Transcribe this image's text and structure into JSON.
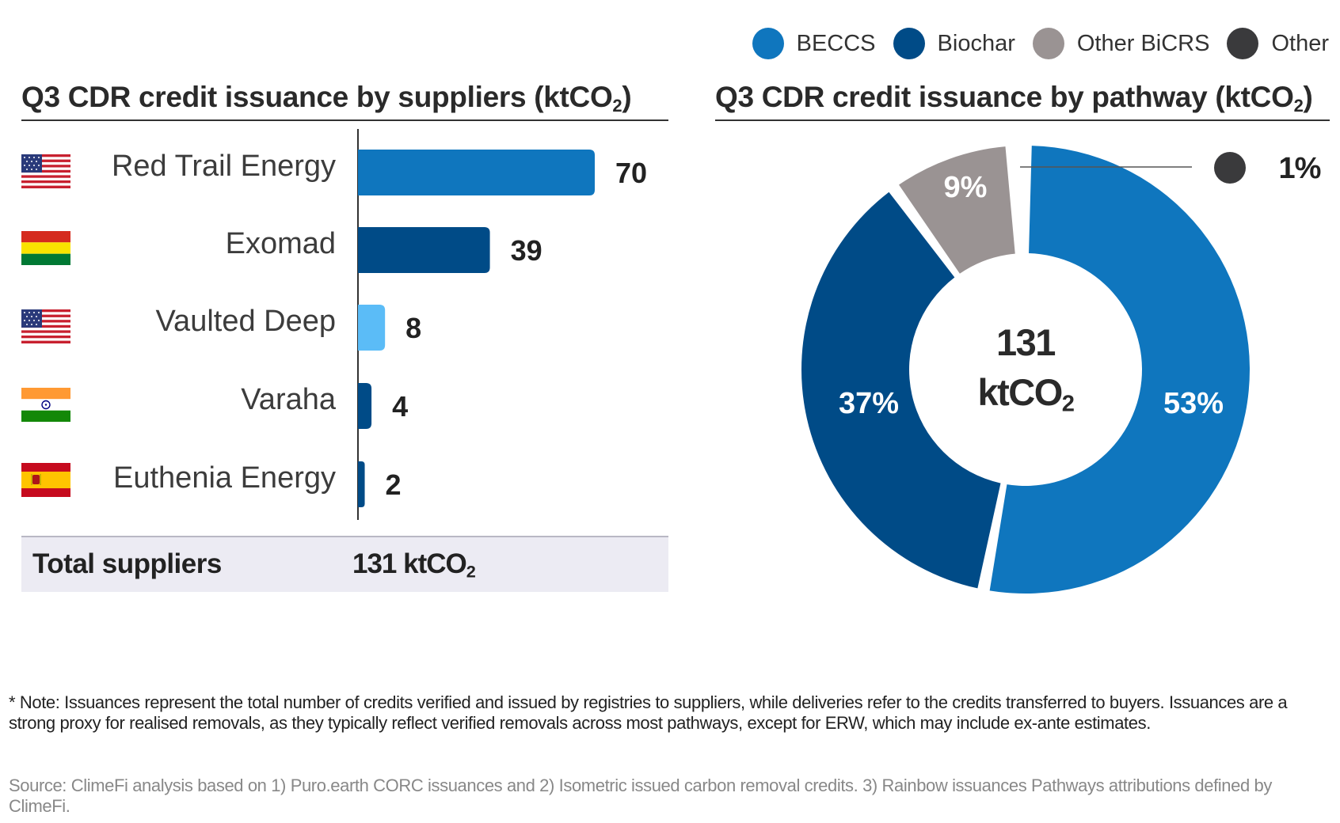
{
  "legend": [
    {
      "label": "BECCS",
      "color": "#0f76be"
    },
    {
      "label": "Biochar",
      "color": "#004b87"
    },
    {
      "label": "Other BiCRS",
      "color": "#9a9393"
    },
    {
      "label": "Other",
      "color": "#3a3a3c"
    }
  ],
  "chart_data": [
    {
      "type": "bar",
      "orientation": "horizontal",
      "title": "Q3 CDR credit issuance by suppliers (ktCO",
      "title_subscript": "2",
      "title_close": ")",
      "categories": [
        "Red Trail Energy",
        "Exomad",
        "Vaulted Deep",
        "Varaha",
        "Euthenia Energy"
      ],
      "values": [
        70,
        39,
        8,
        4,
        2
      ],
      "value_labels": [
        "70",
        "39",
        "8",
        "4",
        "2"
      ],
      "bar_colors": [
        "#0f76be",
        "#004b87",
        "#5bbcf7",
        "#004b87",
        "#004b87"
      ],
      "flags": [
        "us-flag",
        "bolivia-flag",
        "us-flag",
        "india-flag",
        "spain-flag"
      ],
      "xlim": [
        0,
        100
      ]
    },
    {
      "type": "pie",
      "variant": "donut",
      "title": "Q3 CDR credit issuance by pathway (ktCO",
      "title_subscript": "2",
      "title_close": ")",
      "labels": [
        "BECCS",
        "Biochar",
        "Other BiCRS",
        "Other"
      ],
      "values": [
        53,
        37,
        9,
        1
      ],
      "value_labels": [
        "53%",
        "37%",
        "9%",
        "1%"
      ],
      "colors": [
        "#0f76be",
        "#004b87",
        "#9a9393",
        "#3a3a3c"
      ],
      "center_value": "131",
      "center_unit": "ktCO",
      "center_unit_subscript": "2"
    }
  ],
  "total": {
    "label": "Total suppliers",
    "value": "131 ktCO",
    "value_subscript": "2"
  },
  "note": "* Note: Issuances represent the total number of credits verified and issued by registries to suppliers, while deliveries refer to the credits transferred to buyers. Issuances are a strong proxy for realised removals, as they typically reflect verified removals across most pathways, except for ERW, which may include ex-ante estimates.",
  "source": "Source: ClimeFi analysis based on 1) Puro.earth CORC issuances and 2) Isometric issued carbon removal credits. 3) Rainbow issuances  Pathways attributions defined by ClimeFi."
}
